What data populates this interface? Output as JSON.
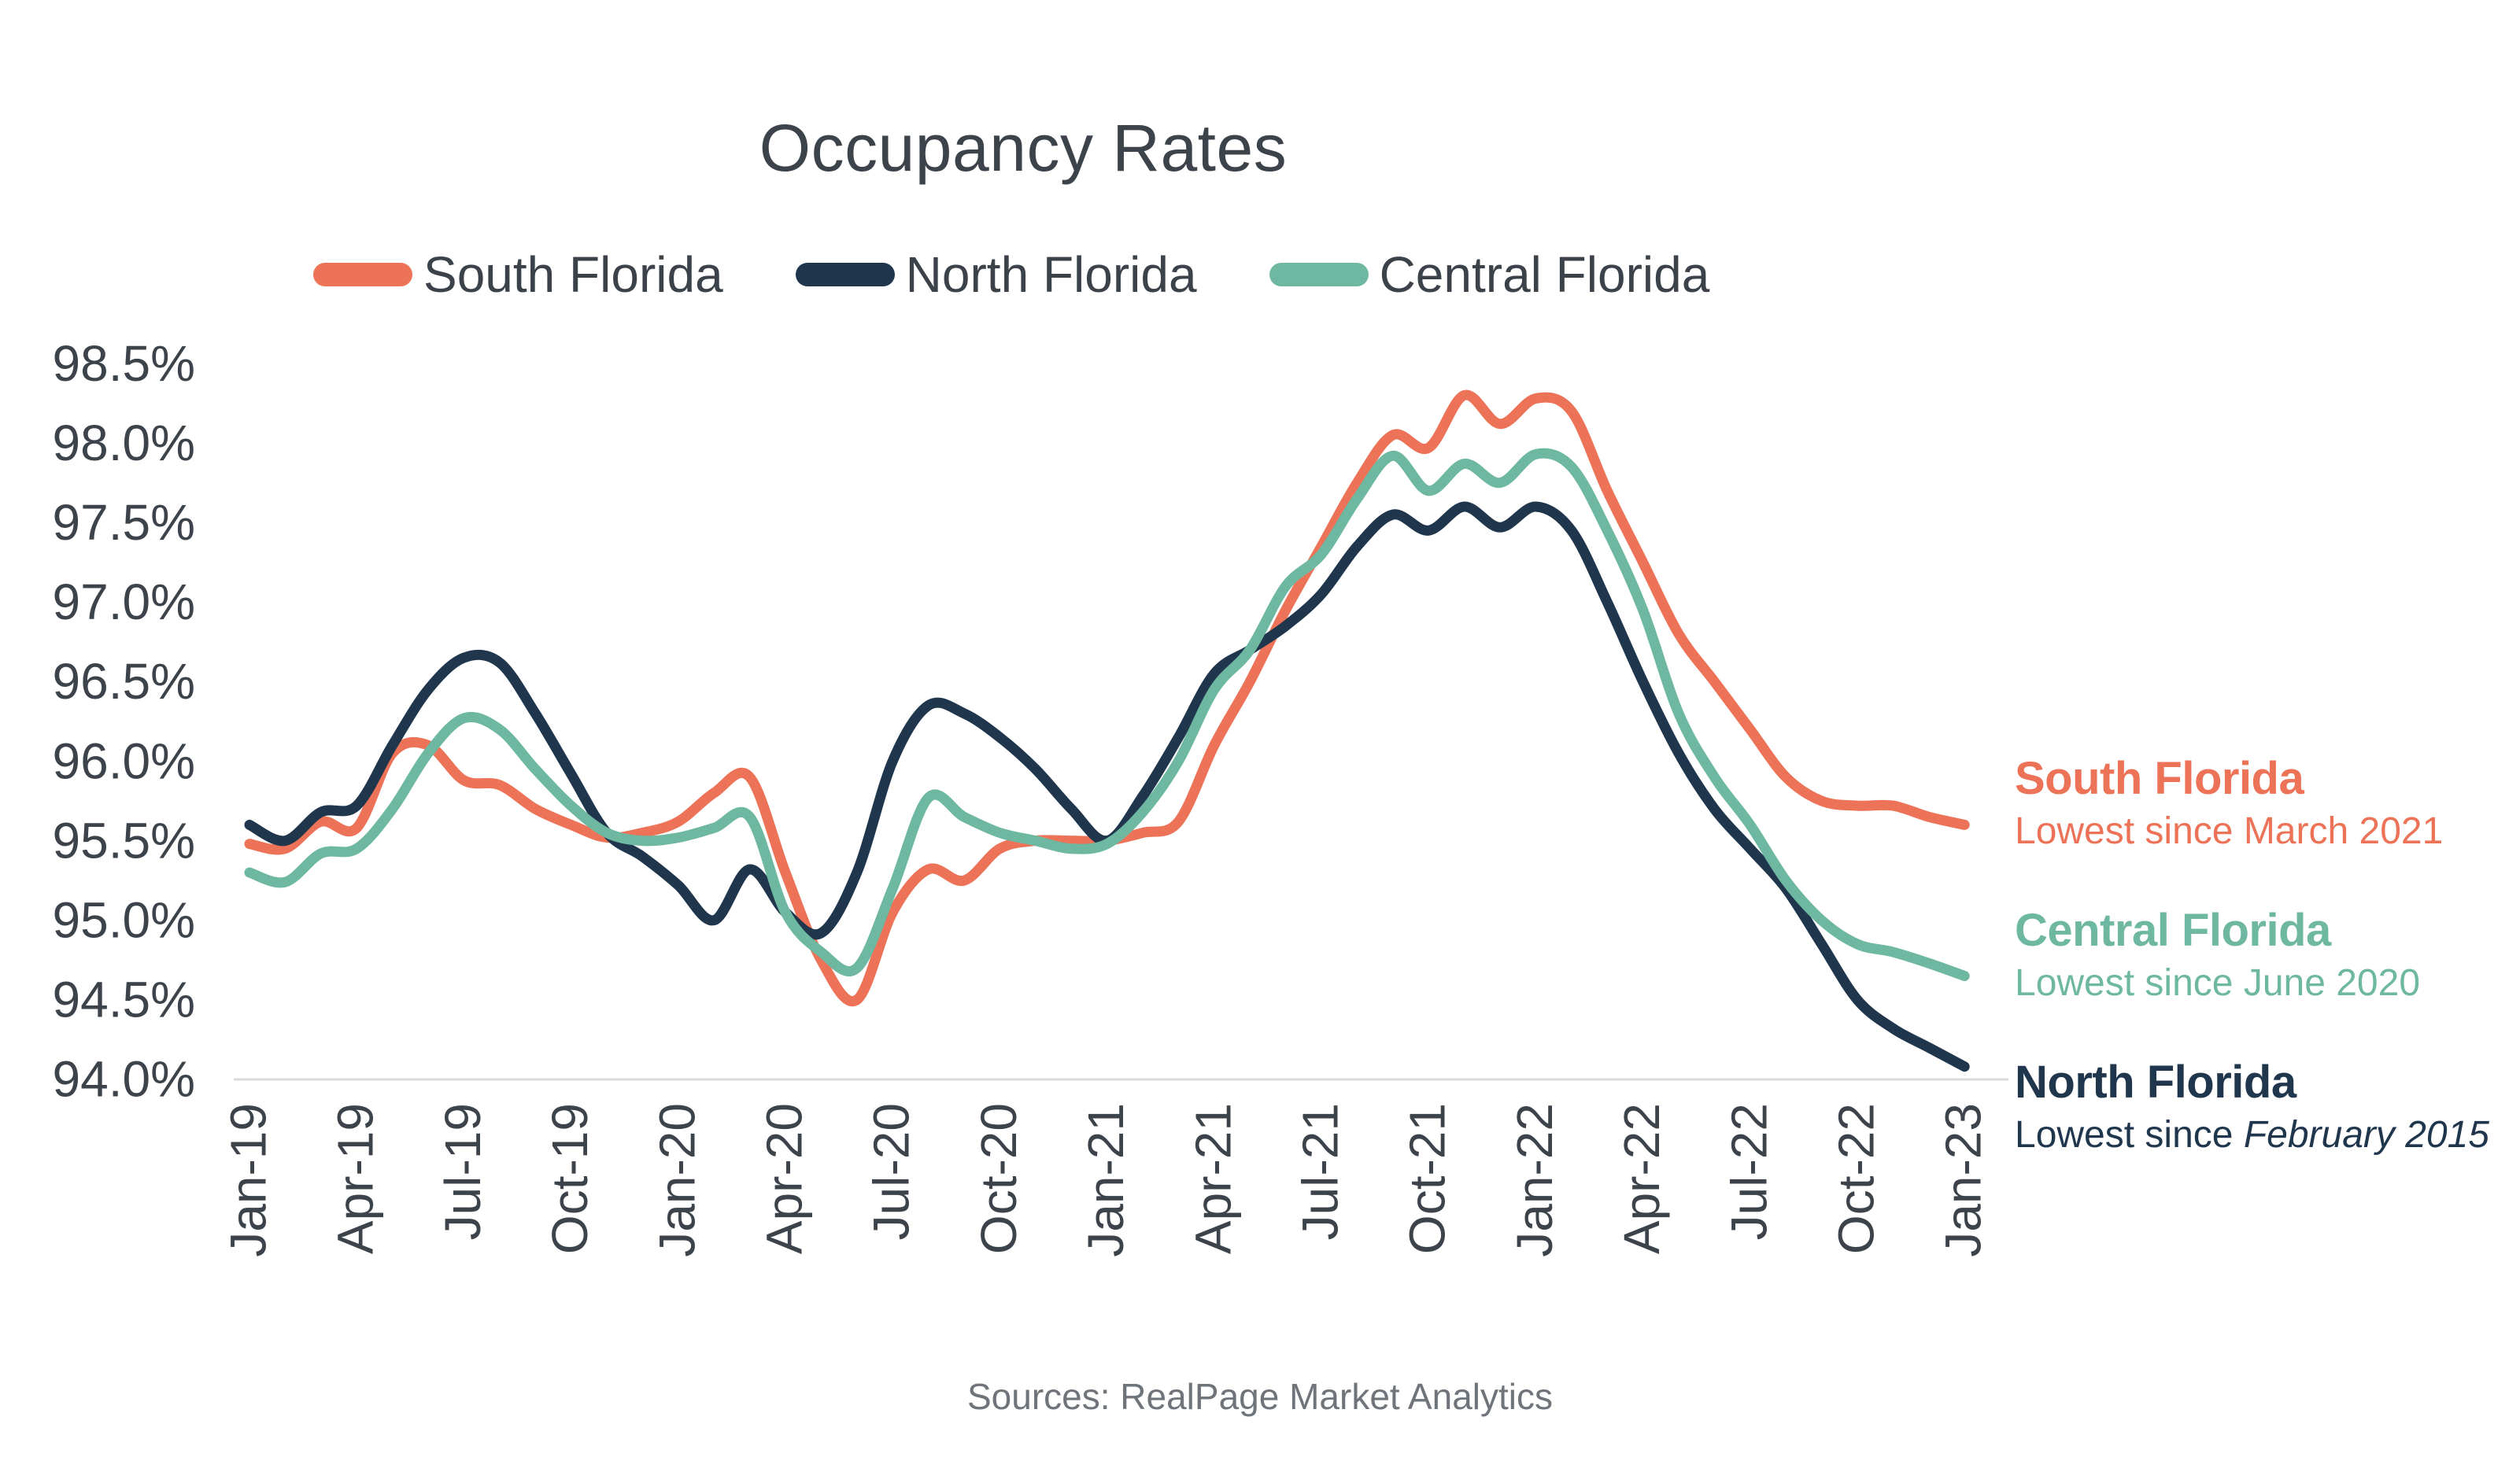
{
  "title": "Occupancy Rates",
  "legend": [
    {
      "label": "South Florida",
      "color": "#EC7357"
    },
    {
      "label": "North Florida",
      "color": "#1F364D"
    },
    {
      "label": "Central Florida",
      "color": "#6EB8A2"
    }
  ],
  "annotations": [
    {
      "label": "South Florida",
      "note": "Lowest since March 2021",
      "note_italic": "",
      "color": "#EC7357"
    },
    {
      "label": "Central Florida",
      "note": "Lowest since June 2020",
      "note_italic": "",
      "color": "#6EB8A2"
    },
    {
      "label": "North Florida",
      "note": "Lowest since ",
      "note_italic": "February 2015",
      "color": "#1F364D"
    }
  ],
  "footer": "Sources: RealPage Market Analytics",
  "colors": {
    "text_dark": "#3c434a",
    "axis_line": "#d9d9d9",
    "footer_gray": "#6e747a"
  },
  "chart_data": {
    "type": "line",
    "title": "Occupancy Rates",
    "x_unit": "month",
    "x_range": "Jan-2019 to Jan-2023, monthly (49 points per series)",
    "x_tick_labels": [
      "Jan-19",
      "Apr-19",
      "Jul-19",
      "Oct-19",
      "Jan-20",
      "Apr-20",
      "Jul-20",
      "Oct-20",
      "Jan-21",
      "Apr-21",
      "Jul-21",
      "Oct-21",
      "Jan-22",
      "Apr-22",
      "Jul-22",
      "Oct-22",
      "Jan-23"
    ],
    "y_tick_labels": [
      "98.5%",
      "98.0%",
      "97.5%",
      "97.0%",
      "96.5%",
      "96.0%",
      "95.5%",
      "95.0%",
      "94.5%",
      "94.0%"
    ],
    "ylim": [
      94.0,
      98.5
    ],
    "grid": false,
    "legend_position": "top",
    "series": [
      {
        "name": "South Florida",
        "color": "#EC7357",
        "values": [
          95.48,
          95.45,
          95.62,
          95.58,
          96.05,
          96.1,
          95.88,
          95.85,
          95.7,
          95.6,
          95.52,
          95.55,
          95.62,
          95.8,
          95.9,
          95.3,
          94.75,
          94.5,
          95.05,
          95.32,
          95.25,
          95.45,
          95.5,
          95.5,
          95.5,
          95.55,
          95.62,
          96.1,
          96.5,
          96.95,
          97.35,
          97.75,
          98.05,
          97.97,
          98.3,
          98.12,
          98.28,
          98.2,
          97.7,
          97.25,
          96.8,
          96.5,
          96.2,
          95.9,
          95.75,
          95.72,
          95.72,
          95.65,
          95.6
        ]
      },
      {
        "name": "North Florida",
        "color": "#1F364D",
        "values": [
          95.6,
          95.5,
          95.68,
          95.72,
          96.1,
          96.45,
          96.65,
          96.62,
          96.3,
          95.92,
          95.55,
          95.4,
          95.22,
          95.0,
          95.32,
          95.05,
          94.92,
          95.3,
          96.0,
          96.35,
          96.3,
          96.15,
          95.95,
          95.7,
          95.5,
          95.78,
          96.15,
          96.55,
          96.7,
          96.85,
          97.05,
          97.35,
          97.55,
          97.45,
          97.6,
          97.47,
          97.6,
          97.45,
          97.0,
          96.5,
          96.05,
          95.7,
          95.45,
          95.2,
          94.85,
          94.5,
          94.32,
          94.2,
          94.08
        ]
      },
      {
        "name": "Central Florida",
        "color": "#6EB8A2",
        "values": [
          95.3,
          95.24,
          95.42,
          95.45,
          95.7,
          96.05,
          96.27,
          96.2,
          95.95,
          95.72,
          95.55,
          95.5,
          95.52,
          95.58,
          95.65,
          95.05,
          94.8,
          94.7,
          95.2,
          95.77,
          95.65,
          95.55,
          95.5,
          95.45,
          95.48,
          95.68,
          96.0,
          96.45,
          96.7,
          97.1,
          97.3,
          97.65,
          97.92,
          97.7,
          97.87,
          97.75,
          97.93,
          97.85,
          97.45,
          96.95,
          96.3,
          95.9,
          95.6,
          95.25,
          95.0,
          94.85,
          94.8,
          94.73,
          94.65
        ]
      }
    ]
  }
}
